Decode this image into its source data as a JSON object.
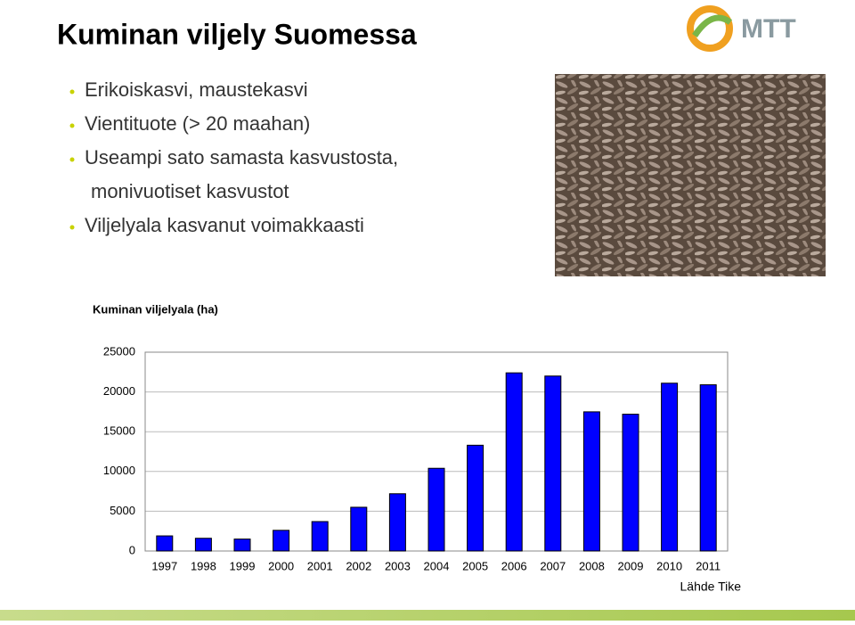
{
  "slide": {
    "title": "Kuminan viljely Suomessa",
    "logo_text": "MTT",
    "bullets": [
      {
        "lines": [
          "Erikoiskasvi, maustekasvi"
        ]
      },
      {
        "lines": [
          "Vientituote (> 20 maahan)"
        ]
      },
      {
        "lines": [
          "Useampi sato samasta kasvustosta,",
          "monivuotiset kasvustot"
        ]
      },
      {
        "lines": [
          "Viljelyala kasvanut voimakkaasti"
        ]
      }
    ],
    "source": "Lähde Tike"
  },
  "chart_data": {
    "type": "bar",
    "title": "Kuminan viljelyala (ha)",
    "categories": [
      "1997",
      "1998",
      "1999",
      "2000",
      "2001",
      "2002",
      "2003",
      "2004",
      "2005",
      "2006",
      "2007",
      "2008",
      "2009",
      "2010",
      "2011"
    ],
    "values": [
      1900,
      1600,
      1500,
      2600,
      3700,
      5500,
      7200,
      10400,
      13300,
      22400,
      22000,
      17500,
      17200,
      21100,
      20900
    ],
    "color": "#0000ff",
    "ylim": [
      0,
      25000
    ],
    "yticks": [
      0,
      5000,
      10000,
      15000,
      20000,
      25000
    ],
    "grid": true
  }
}
